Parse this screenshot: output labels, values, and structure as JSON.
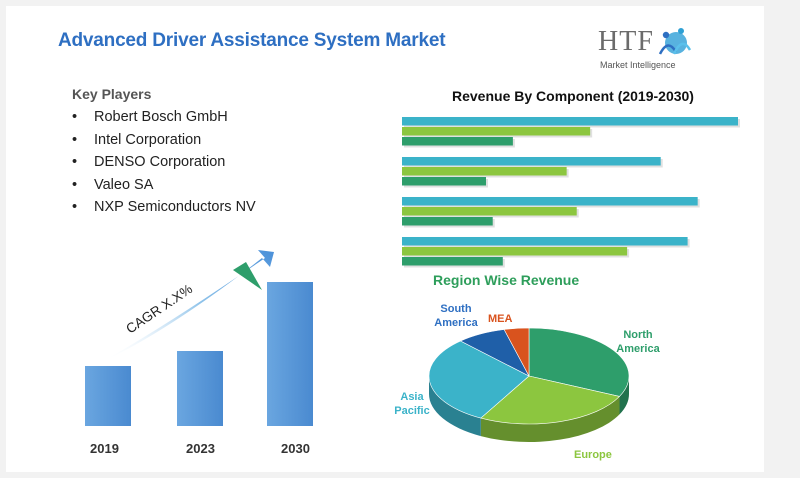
{
  "page": {
    "title": "Advanced Driver Assistance System Market",
    "logo": {
      "word": "HTF",
      "subtitle": "Market Intelligence"
    }
  },
  "key_players": {
    "heading": "Key Players",
    "bullet": "•",
    "items": [
      "Robert Bosch GmbH",
      "Intel Corporation",
      "DENSO Corporation",
      "Valeo SA",
      "NXP Semiconductors NV"
    ]
  },
  "colors": {
    "title_blue": "#2e6fc2",
    "bar_blue": "#5b9bd5",
    "teal": "#3bb3c9",
    "green_light": "#8cc63f",
    "green_dark": "#2e9e6b",
    "navy": "#1f5fa8",
    "orange": "#d9531e"
  },
  "chart_data": [
    {
      "type": "bar",
      "categories": [
        "2019",
        "2023",
        "2030"
      ],
      "values": [
        1.0,
        1.25,
        2.4
      ],
      "annotation": "CAGR X.X%"
    },
    {
      "type": "bar",
      "orientation": "horizontal",
      "title": "Revenue By Component (2019-2030)",
      "groups": 4,
      "series": [
        {
          "values": [
            100,
            77,
            88,
            85
          ],
          "color": "#3bb3c9"
        },
        {
          "values": [
            56,
            49,
            52,
            67
          ],
          "color": "#8cc63f"
        },
        {
          "values": [
            33,
            25,
            27,
            30
          ],
          "color": "#2e9e6b"
        }
      ]
    },
    {
      "type": "pie",
      "title": "Region Wise Revenue",
      "slices": [
        {
          "label": "North America",
          "value": 32,
          "color": "#2e9e6b"
        },
        {
          "label": "Europe",
          "value": 26,
          "color": "#8cc63f"
        },
        {
          "label": "Asia Pacific",
          "value": 30,
          "color": "#3bb3c9"
        },
        {
          "label": "South America",
          "value": 8,
          "color": "#1f5fa8"
        },
        {
          "label": "MEA",
          "value": 4,
          "color": "#d9531e"
        }
      ]
    }
  ]
}
